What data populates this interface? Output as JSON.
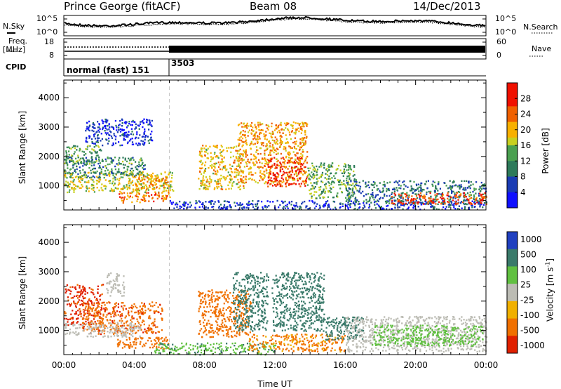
{
  "header": {
    "station": "Prince George (fitACF)",
    "beam": "Beam 08",
    "date": "14/Dec/2013"
  },
  "panels": {
    "noise": {
      "left_label": "N.Sky",
      "right_label": "N.Search",
      "left_ticks": [
        "10^5",
        "10^0"
      ],
      "right_ticks": [
        "10^5",
        "10^0"
      ]
    },
    "freq": {
      "left_label_1": "Freq.",
      "left_label_2": "[MHz]",
      "right_label": "Nave",
      "left_ticks": [
        "18",
        "8"
      ],
      "right_ticks": [
        "60",
        "0"
      ]
    },
    "cpid": {
      "label": "CPID",
      "modes": [
        {
          "text": "normal (fast) 151",
          "start_hour": 0
        },
        {
          "text": "3503",
          "start_hour": 6
        }
      ]
    }
  },
  "chart_data": [
    {
      "type": "heatmap",
      "name": "power",
      "ylabel": "Slant Range [km]",
      "ylim": [
        180,
        4600
      ],
      "yticks": [
        1000,
        2000,
        3000,
        4000
      ],
      "xlabel": "Time UT",
      "xlim": [
        0,
        24
      ],
      "xticks": [
        "00:00",
        "04:00",
        "08:00",
        "12:00",
        "16:00",
        "20:00",
        "00:00"
      ],
      "colorbar": {
        "label": "Power [dB]",
        "range": [
          0,
          32
        ],
        "ticks": [
          "4",
          "8",
          "12",
          "16",
          "20",
          "24",
          "28"
        ]
      },
      "regions": [
        {
          "t": [
            0.0,
            6.2
          ],
          "r": [
            800,
            1500
          ],
          "v": 18
        },
        {
          "t": [
            0.0,
            2.2
          ],
          "r": [
            1800,
            2400
          ],
          "v": 14
        },
        {
          "t": [
            0.0,
            4.6
          ],
          "r": [
            1300,
            2000
          ],
          "v": 12
        },
        {
          "t": [
            1.2,
            5.0
          ],
          "r": [
            2400,
            3300
          ],
          "v": 5
        },
        {
          "t": [
            3.0,
            6.0
          ],
          "r": [
            450,
            800
          ],
          "v": 24
        },
        {
          "t": [
            4.0,
            6.0
          ],
          "r": [
            900,
            1400
          ],
          "v": 22
        },
        {
          "t": [
            6.0,
            24.0
          ],
          "r": [
            220,
            520
          ],
          "v": 6
        },
        {
          "t": [
            7.6,
            10.2
          ],
          "r": [
            900,
            2400
          ],
          "v": 20
        },
        {
          "t": [
            9.8,
            13.8
          ],
          "r": [
            1100,
            3200
          ],
          "v": 22
        },
        {
          "t": [
            11.5,
            13.8
          ],
          "r": [
            1000,
            2000
          ],
          "v": 28
        },
        {
          "t": [
            13.8,
            16.6
          ],
          "r": [
            600,
            1800
          ],
          "v": 14
        },
        {
          "t": [
            16.0,
            24.0
          ],
          "r": [
            400,
            1200
          ],
          "v": 10
        },
        {
          "t": [
            18.5,
            24.0
          ],
          "r": [
            400,
            800
          ],
          "v": 27
        }
      ]
    },
    {
      "type": "heatmap",
      "name": "velocity",
      "ylabel": "Slant Range [km]",
      "ylim": [
        180,
        4600
      ],
      "yticks": [
        1000,
        2000,
        3000,
        4000
      ],
      "xlabel": "Time UT",
      "xlim": [
        0,
        24
      ],
      "xticks": [
        "00:00",
        "04:00",
        "08:00",
        "12:00",
        "16:00",
        "20:00",
        "00:00"
      ],
      "colorbar": {
        "label": "Velocity [m s^-1]",
        "ticks": [
          "1000",
          "500",
          "100",
          "25",
          "-25",
          "-100",
          "-500",
          "-1000"
        ]
      },
      "regions": [
        {
          "t": [
            0.0,
            2.2
          ],
          "r": [
            1200,
            2600
          ],
          "v": -600
        },
        {
          "t": [
            1.0,
            5.6
          ],
          "r": [
            900,
            2000
          ],
          "v": -400
        },
        {
          "t": [
            0.0,
            4.4
          ],
          "r": [
            800,
            1300
          ],
          "v": 0
        },
        {
          "t": [
            2.4,
            3.4
          ],
          "r": [
            2200,
            3000
          ],
          "v": 0
        },
        {
          "t": [
            3.0,
            6.0
          ],
          "r": [
            400,
            800
          ],
          "v": -200
        },
        {
          "t": [
            5.0,
            12.0
          ],
          "r": [
            200,
            600
          ],
          "v": 80
        },
        {
          "t": [
            7.6,
            10.6
          ],
          "r": [
            800,
            2400
          ],
          "v": -300
        },
        {
          "t": [
            9.6,
            11.6
          ],
          "r": [
            1000,
            3000
          ],
          "v": 300
        },
        {
          "t": [
            11.8,
            14.8
          ],
          "r": [
            1000,
            3000
          ],
          "v": 250
        },
        {
          "t": [
            10.5,
            16.0
          ],
          "r": [
            300,
            900
          ],
          "v": -120
        },
        {
          "t": [
            14.8,
            17.0
          ],
          "r": [
            700,
            1500
          ],
          "v": 200
        },
        {
          "t": [
            16.0,
            24.0
          ],
          "r": [
            300,
            1500
          ],
          "v": 0
        },
        {
          "t": [
            17.5,
            23.8
          ],
          "r": [
            500,
            1200
          ],
          "v": 60
        }
      ]
    }
  ]
}
